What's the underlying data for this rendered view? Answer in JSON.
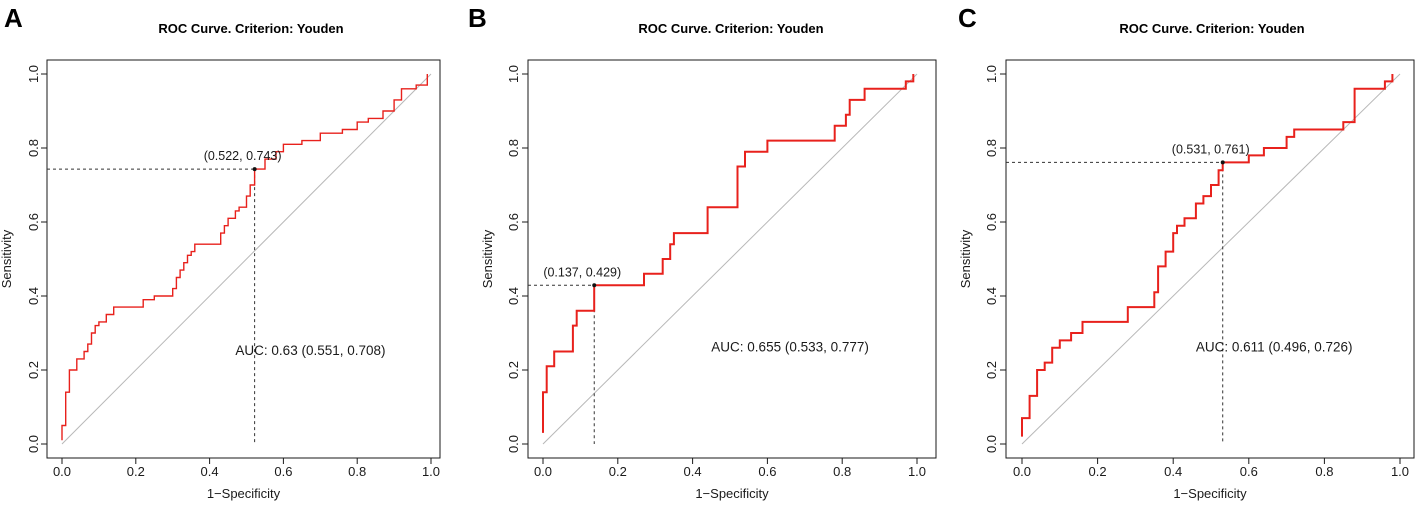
{
  "colors": {
    "roc": "#e8211c",
    "diagonal": "#b8b8b8",
    "axis": "#1a1a1a",
    "marker": "#111111"
  },
  "chart_data": [
    {
      "type": "line",
      "panel_label": "A",
      "title": "ROC Curve. Criterion: Youden",
      "xlabel": "1−Specificity",
      "ylabel": "Sensitivity",
      "xlim": [
        0,
        1
      ],
      "ylim": [
        0,
        1
      ],
      "x_ticks": [
        "0.0",
        "0.2",
        "0.4",
        "0.6",
        "0.8",
        "1.0"
      ],
      "y_ticks": [
        "0.0",
        "0.2",
        "0.4",
        "0.6",
        "0.8",
        "1.0"
      ],
      "cutoff": {
        "x": 0.522,
        "y": 0.743,
        "label": "(0.522, 0.743)"
      },
      "auc_label": "AUC: 0.63 (0.551, 0.708)",
      "auc_pos": [
        0.47,
        0.24
      ],
      "series": [
        {
          "name": "ROC",
          "x": [
            0,
            0,
            0.01,
            0.01,
            0.02,
            0.02,
            0.04,
            0.04,
            0.06,
            0.06,
            0.07,
            0.07,
            0.08,
            0.08,
            0.09,
            0.09,
            0.1,
            0.1,
            0.12,
            0.12,
            0.14,
            0.14,
            0.16,
            0.16,
            0.22,
            0.22,
            0.25,
            0.25,
            0.3,
            0.3,
            0.31,
            0.31,
            0.32,
            0.32,
            0.33,
            0.33,
            0.34,
            0.34,
            0.35,
            0.35,
            0.36,
            0.36,
            0.43,
            0.43,
            0.44,
            0.44,
            0.45,
            0.45,
            0.47,
            0.47,
            0.48,
            0.48,
            0.5,
            0.5,
            0.51,
            0.51,
            0.522,
            0.522,
            0.55,
            0.55,
            0.57,
            0.57,
            0.58,
            0.58,
            0.6,
            0.6,
            0.65,
            0.65,
            0.7,
            0.7,
            0.76,
            0.76,
            0.8,
            0.8,
            0.83,
            0.83,
            0.87,
            0.87,
            0.9,
            0.9,
            0.92,
            0.92,
            0.96,
            0.96,
            0.99,
            0.99
          ],
          "y": [
            0.01,
            0.05,
            0.05,
            0.14,
            0.14,
            0.2,
            0.2,
            0.23,
            0.23,
            0.25,
            0.25,
            0.27,
            0.27,
            0.3,
            0.3,
            0.32,
            0.32,
            0.33,
            0.33,
            0.35,
            0.35,
            0.37,
            0.37,
            0.37,
            0.37,
            0.39,
            0.39,
            0.4,
            0.4,
            0.42,
            0.42,
            0.45,
            0.45,
            0.47,
            0.47,
            0.49,
            0.49,
            0.51,
            0.51,
            0.52,
            0.52,
            0.54,
            0.54,
            0.57,
            0.57,
            0.59,
            0.59,
            0.61,
            0.61,
            0.63,
            0.63,
            0.64,
            0.64,
            0.67,
            0.67,
            0.7,
            0.7,
            0.743,
            0.743,
            0.77,
            0.77,
            0.77,
            0.77,
            0.79,
            0.79,
            0.81,
            0.81,
            0.82,
            0.82,
            0.84,
            0.84,
            0.85,
            0.85,
            0.87,
            0.87,
            0.88,
            0.88,
            0.9,
            0.9,
            0.93,
            0.93,
            0.96,
            0.96,
            0.97,
            0.97,
            1.0
          ]
        }
      ]
    },
    {
      "type": "line",
      "panel_label": "B",
      "title": "ROC Curve. Criterion: Youden",
      "xlabel": "1−Specificity",
      "ylabel": "Sensitivity",
      "xlim": [
        0,
        1
      ],
      "ylim": [
        0,
        1
      ],
      "x_ticks": [
        "0.0",
        "0.2",
        "0.4",
        "0.6",
        "0.8",
        "1.0"
      ],
      "y_ticks": [
        "0.0",
        "0.2",
        "0.4",
        "0.6",
        "0.8",
        "1.0"
      ],
      "cutoff": {
        "x": 0.137,
        "y": 0.429,
        "label": "(0.137, 0.429)"
      },
      "auc_label": "AUC: 0.655 (0.533, 0.777)",
      "auc_pos": [
        0.45,
        0.25
      ],
      "series": [
        {
          "name": "ROC",
          "x": [
            0,
            0,
            0.01,
            0.01,
            0.03,
            0.03,
            0.05,
            0.05,
            0.08,
            0.08,
            0.09,
            0.09,
            0.12,
            0.12,
            0.137,
            0.137,
            0.27,
            0.27,
            0.32,
            0.32,
            0.34,
            0.34,
            0.35,
            0.35,
            0.41,
            0.41,
            0.44,
            0.44,
            0.5,
            0.5,
            0.52,
            0.52,
            0.54,
            0.54,
            0.58,
            0.58,
            0.6,
            0.6,
            0.78,
            0.78,
            0.81,
            0.81,
            0.82,
            0.82,
            0.83,
            0.83,
            0.86,
            0.86,
            0.88,
            0.88,
            0.97,
            0.97,
            0.99,
            0.99
          ],
          "y": [
            0.03,
            0.14,
            0.14,
            0.21,
            0.21,
            0.25,
            0.25,
            0.25,
            0.25,
            0.32,
            0.32,
            0.36,
            0.36,
            0.36,
            0.36,
            0.429,
            0.429,
            0.46,
            0.46,
            0.5,
            0.5,
            0.54,
            0.54,
            0.57,
            0.57,
            0.57,
            0.57,
            0.64,
            0.64,
            0.64,
            0.64,
            0.75,
            0.75,
            0.79,
            0.79,
            0.79,
            0.79,
            0.82,
            0.82,
            0.86,
            0.86,
            0.89,
            0.89,
            0.93,
            0.93,
            0.93,
            0.93,
            0.96,
            0.96,
            0.96,
            0.96,
            0.98,
            0.98,
            1.0
          ]
        }
      ]
    },
    {
      "type": "line",
      "panel_label": "C",
      "title": "ROC Curve. Criterion: Youden",
      "xlabel": "1−Specificity",
      "ylabel": "Sensitivity",
      "xlim": [
        0,
        1
      ],
      "ylim": [
        0,
        1
      ],
      "x_ticks": [
        "0.0",
        "0.2",
        "0.4",
        "0.6",
        "0.8",
        "1.0"
      ],
      "y_ticks": [
        "0.0",
        "0.2",
        "0.4",
        "0.6",
        "0.8",
        "1.0"
      ],
      "cutoff": {
        "x": 0.531,
        "y": 0.761,
        "label": "(0.531, 0.761)"
      },
      "auc_label": "AUC: 0.611 (0.496, 0.726)",
      "auc_pos": [
        0.46,
        0.25
      ],
      "series": [
        {
          "name": "ROC",
          "x": [
            0,
            0,
            0.02,
            0.02,
            0.04,
            0.04,
            0.06,
            0.06,
            0.08,
            0.08,
            0.1,
            0.1,
            0.13,
            0.13,
            0.16,
            0.16,
            0.28,
            0.28,
            0.35,
            0.35,
            0.36,
            0.36,
            0.38,
            0.38,
            0.4,
            0.4,
            0.41,
            0.41,
            0.43,
            0.43,
            0.46,
            0.46,
            0.48,
            0.48,
            0.5,
            0.5,
            0.52,
            0.52,
            0.531,
            0.531,
            0.6,
            0.6,
            0.64,
            0.64,
            0.7,
            0.7,
            0.72,
            0.72,
            0.85,
            0.85,
            0.88,
            0.88,
            0.96,
            0.96,
            0.98,
            0.98
          ],
          "y": [
            0.02,
            0.07,
            0.07,
            0.13,
            0.13,
            0.2,
            0.2,
            0.22,
            0.22,
            0.26,
            0.26,
            0.28,
            0.28,
            0.3,
            0.3,
            0.33,
            0.33,
            0.37,
            0.37,
            0.41,
            0.41,
            0.48,
            0.48,
            0.52,
            0.52,
            0.57,
            0.57,
            0.59,
            0.59,
            0.61,
            0.61,
            0.65,
            0.65,
            0.67,
            0.67,
            0.7,
            0.7,
            0.74,
            0.74,
            0.761,
            0.761,
            0.78,
            0.78,
            0.8,
            0.8,
            0.83,
            0.83,
            0.85,
            0.85,
            0.87,
            0.87,
            0.96,
            0.96,
            0.98,
            0.98,
            1.0
          ]
        }
      ]
    }
  ]
}
